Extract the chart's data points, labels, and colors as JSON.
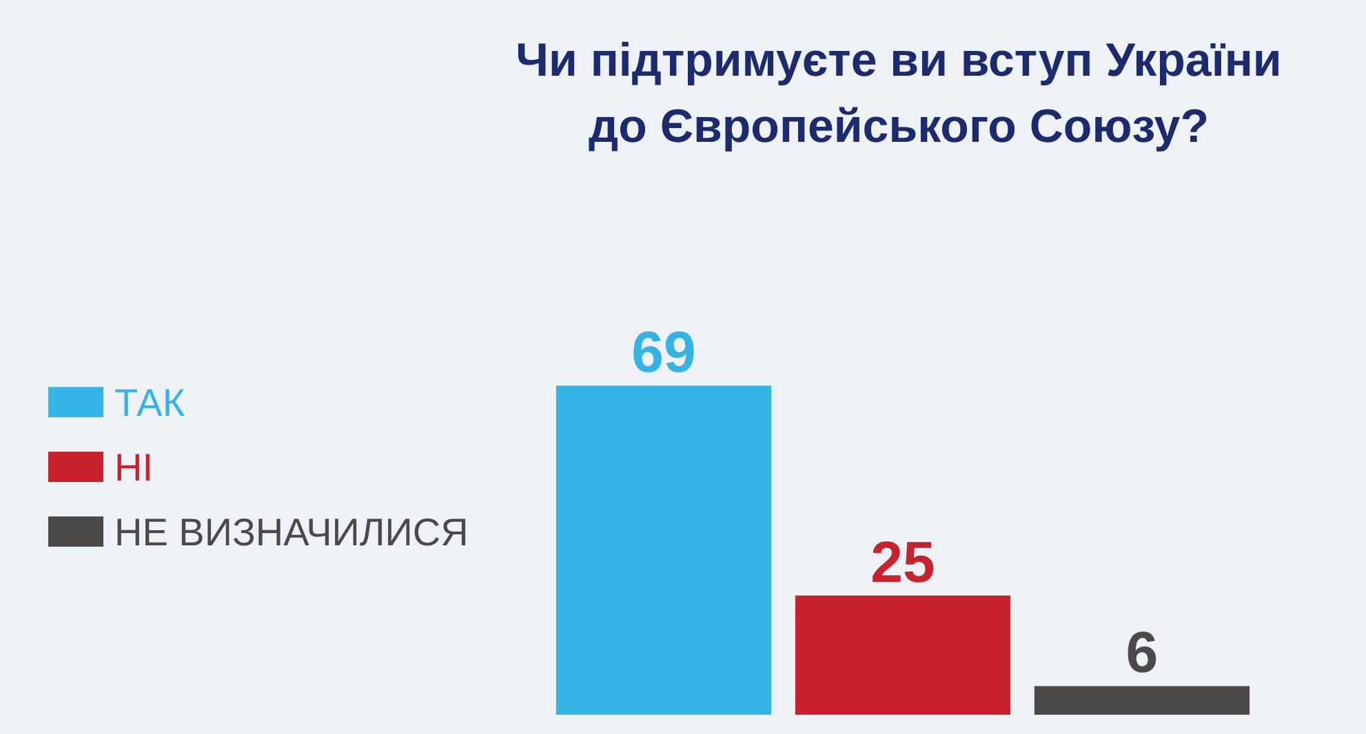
{
  "chart_data": {
    "type": "bar",
    "title": "Чи підтримуєте ви вступ України\nдо Європейського Союзу?",
    "categories": [
      null,
      null,
      null
    ],
    "series": [
      {
        "name": "ТАК",
        "color": "#34b4e4",
        "values": [
          69,
          null,
          null
        ]
      },
      {
        "name": "НІ",
        "color": "#c8232c",
        "values": [
          null,
          25,
          null
        ]
      },
      {
        "name": "НЕ ВИЗНАЧИЛИСЯ",
        "color": "#4a4a4a",
        "values": [
          null,
          null,
          6
        ]
      }
    ],
    "stacked": true,
    "data_labels": true,
    "legend": "left"
  }
}
